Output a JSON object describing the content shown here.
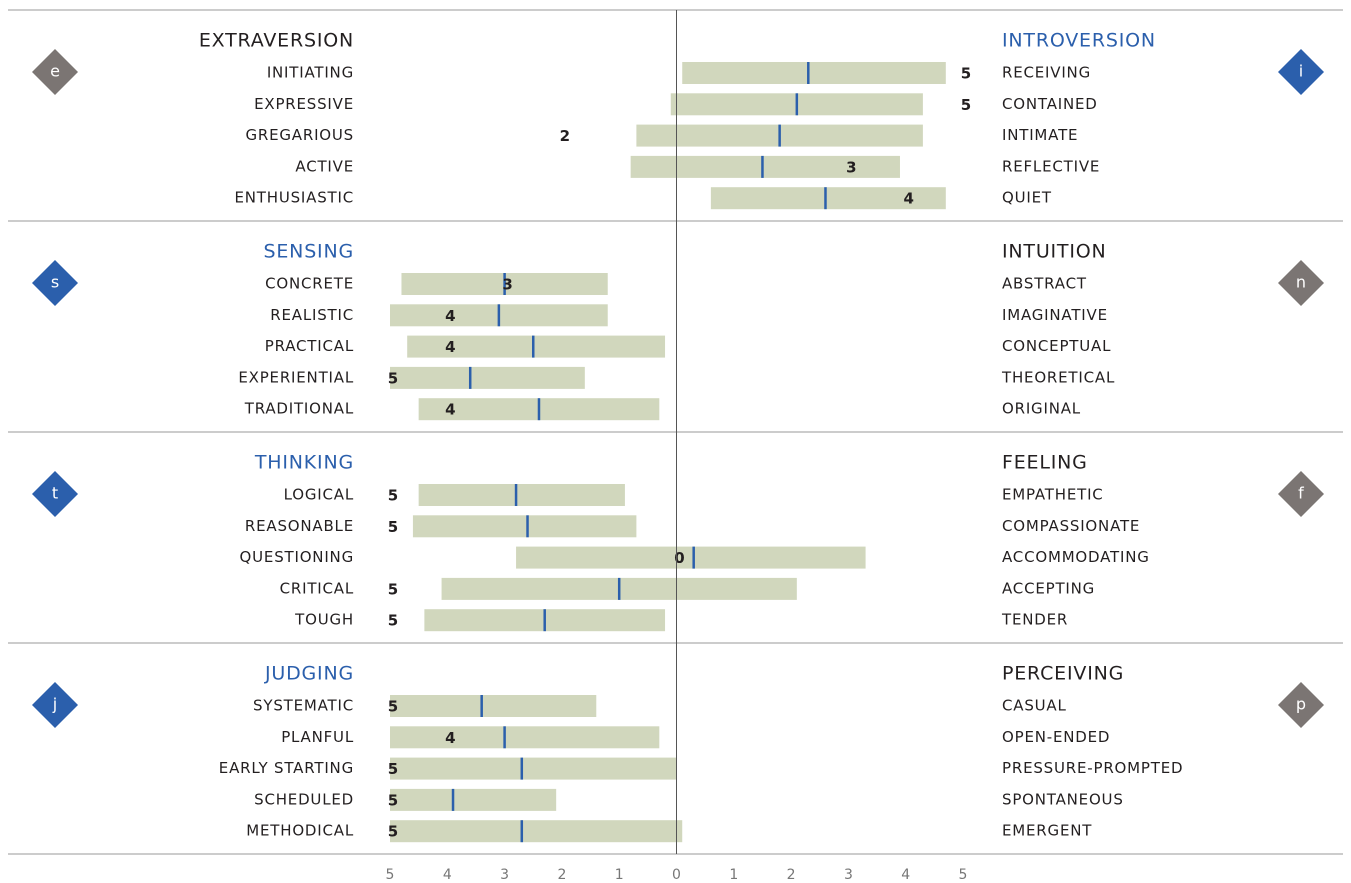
{
  "chart_data": {
    "type": "range",
    "xlim": [
      -5,
      5
    ],
    "xticks": [
      {
        "value": -5,
        "label": "5"
      },
      {
        "value": -4,
        "label": "4"
      },
      {
        "value": -3,
        "label": "3"
      },
      {
        "value": -2,
        "label": "2"
      },
      {
        "value": -1,
        "label": "1"
      },
      0,
      1,
      2,
      3,
      4,
      5
    ],
    "bar_color": "#d1d7bd",
    "marker_color": "#2b5fac",
    "preferred_color": "#2b5fac",
    "other_color": "#231f20",
    "preferred_icon_color": "#2b5fac",
    "other_icon_color": "#7b7573",
    "sections": [
      {
        "left_pole": "EXTRAVERSION",
        "right_pole": "INTROVERSION",
        "left_letter": "e",
        "right_letter": "i",
        "preferred": "right",
        "facets": [
          {
            "left": "INITIATING",
            "right": "RECEIVING",
            "low": 0.1,
            "high": 4.7,
            "mid": 2.3,
            "score": 5,
            "score_label": "5"
          },
          {
            "left": "EXPRESSIVE",
            "right": "CONTAINED",
            "low": -0.1,
            "high": 4.3,
            "mid": 2.1,
            "score": 5,
            "score_label": "5"
          },
          {
            "left": "GREGARIOUS",
            "right": "INTIMATE",
            "low": -0.7,
            "high": 4.3,
            "mid": 1.8,
            "score": -2,
            "score_label": "2"
          },
          {
            "left": "ACTIVE",
            "right": "REFLECTIVE",
            "low": -0.8,
            "high": 3.9,
            "mid": 1.5,
            "score": 3,
            "score_label": "3"
          },
          {
            "left": "ENTHUSIASTIC",
            "right": "QUIET",
            "low": 0.6,
            "high": 4.7,
            "mid": 2.6,
            "score": 4,
            "score_label": "4"
          }
        ]
      },
      {
        "left_pole": "SENSING",
        "right_pole": "INTUITION",
        "left_letter": "s",
        "right_letter": "n",
        "preferred": "left",
        "facets": [
          {
            "left": "CONCRETE",
            "right": "ABSTRACT",
            "low": -4.8,
            "high": -1.2,
            "mid": -3.0,
            "score": -3,
            "score_label": "3"
          },
          {
            "left": "REALISTIC",
            "right": "IMAGINATIVE",
            "low": -5.0,
            "high": -1.2,
            "mid": -3.1,
            "score": -4,
            "score_label": "4"
          },
          {
            "left": "PRACTICAL",
            "right": "CONCEPTUAL",
            "low": -4.7,
            "high": -0.2,
            "mid": -2.5,
            "score": -4,
            "score_label": "4"
          },
          {
            "left": "EXPERIENTIAL",
            "right": "THEORETICAL",
            "low": -5.0,
            "high": -1.6,
            "mid": -3.6,
            "score": -5,
            "score_label": "5"
          },
          {
            "left": "TRADITIONAL",
            "right": "ORIGINAL",
            "low": -4.5,
            "high": -0.3,
            "mid": -2.4,
            "score": -4,
            "score_label": "4"
          }
        ]
      },
      {
        "left_pole": "THINKING",
        "right_pole": "FEELING",
        "left_letter": "t",
        "right_letter": "f",
        "preferred": "left",
        "facets": [
          {
            "left": "LOGICAL",
            "right": "EMPATHETIC",
            "low": -4.5,
            "high": -0.9,
            "mid": -2.8,
            "score": -5,
            "score_label": "5"
          },
          {
            "left": "REASONABLE",
            "right": "COMPASSIONATE",
            "low": -4.6,
            "high": -0.7,
            "mid": -2.6,
            "score": -5,
            "score_label": "5"
          },
          {
            "left": "QUESTIONING",
            "right": "ACCOMMODATING",
            "low": -2.8,
            "high": 3.3,
            "mid": 0.3,
            "score": 0,
            "score_label": "0"
          },
          {
            "left": "CRITICAL",
            "right": "ACCEPTING",
            "low": -4.1,
            "high": 2.1,
            "mid": -1.0,
            "score": -5,
            "score_label": "5"
          },
          {
            "left": "TOUGH",
            "right": "TENDER",
            "low": -4.4,
            "high": -0.2,
            "mid": -2.3,
            "score": -5,
            "score_label": "5"
          }
        ]
      },
      {
        "left_pole": "JUDGING",
        "right_pole": "PERCEIVING",
        "left_letter": "j",
        "right_letter": "p",
        "preferred": "left",
        "facets": [
          {
            "left": "SYSTEMATIC",
            "right": "CASUAL",
            "low": -5.0,
            "high": -1.4,
            "mid": -3.4,
            "score": -5,
            "score_label": "5"
          },
          {
            "left": "PLANFUL",
            "right": "OPEN-ENDED",
            "low": -5.0,
            "high": -0.3,
            "mid": -3.0,
            "score": -4,
            "score_label": "4"
          },
          {
            "left": "EARLY STARTING",
            "right": "PRESSURE-PROMPTED",
            "low": -5.0,
            "high": 0.0,
            "mid": -2.7,
            "score": -5,
            "score_label": "5"
          },
          {
            "left": "SCHEDULED",
            "right": "SPONTANEOUS",
            "low": -5.0,
            "high": -2.1,
            "mid": -3.9,
            "score": -5,
            "score_label": "5"
          },
          {
            "left": "METHODICAL",
            "right": "EMERGENT",
            "low": -5.0,
            "high": 0.1,
            "mid": -2.7,
            "score": -5,
            "score_label": "5"
          }
        ]
      }
    ]
  }
}
